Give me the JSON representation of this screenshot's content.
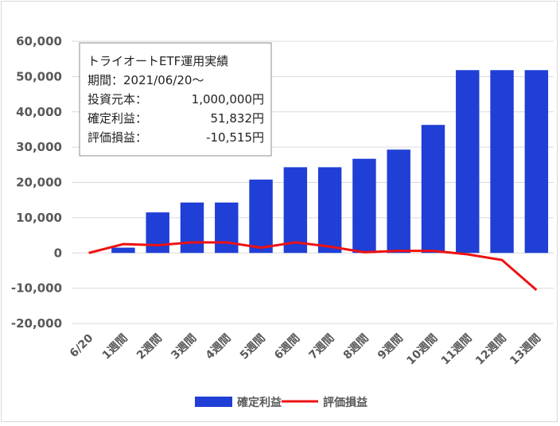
{
  "chart_data": {
    "type": "bar",
    "categories": [
      "6/20",
      "1週間",
      "2週間",
      "3週間",
      "4週間",
      "5週間",
      "6週間",
      "7週間",
      "8週間",
      "9週間",
      "10週間",
      "11週間",
      "12週間",
      "13週間"
    ],
    "series": [
      {
        "name": "確定利益",
        "type": "bar",
        "color": "#1f3fd6",
        "values": [
          null,
          1500,
          11500,
          14300,
          14300,
          20800,
          24300,
          24300,
          26700,
          29300,
          36300,
          51832,
          51832,
          51832
        ]
      },
      {
        "name": "評価損益",
        "type": "line",
        "color": "#ee1111",
        "values": [
          0,
          2500,
          2200,
          3000,
          3000,
          1500,
          3000,
          1800,
          200,
          600,
          600,
          -400,
          -2000,
          -10515
        ]
      }
    ],
    "ylim": [
      -20000,
      60000
    ],
    "yticks": [
      "-20,000",
      "-10,000",
      "0",
      "10,000",
      "20,000",
      "30,000",
      "40,000",
      "50,000",
      "60,000"
    ],
    "yticks_values": [
      -20000,
      -10000,
      0,
      10000,
      20000,
      30000,
      40000,
      50000,
      60000
    ],
    "grid": true,
    "legend": "bottom",
    "annotation": {
      "lines": [
        {
          "label": "トライオートETF運用実績",
          "value": ""
        },
        {
          "label": "期間：2021/06/20～",
          "value": ""
        },
        {
          "label": "投資元本：",
          "value": "1,000,000円"
        },
        {
          "label": "確定利益：",
          "value": "51,832円"
        },
        {
          "label": "評価損益：",
          "value": "-10,515円"
        }
      ]
    }
  }
}
